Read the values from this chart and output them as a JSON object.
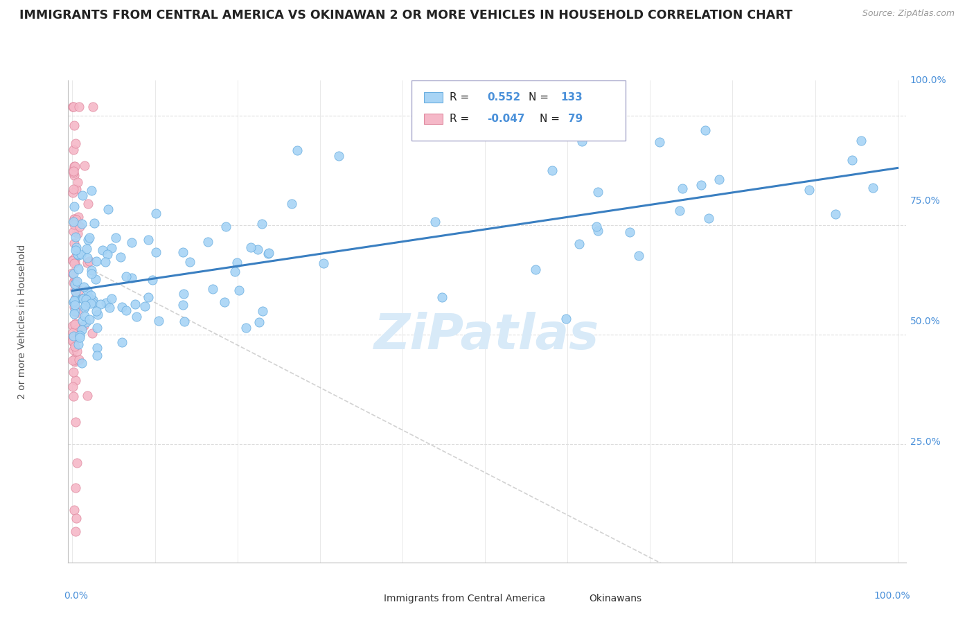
{
  "title": "IMMIGRANTS FROM CENTRAL AMERICA VS OKINAWAN 2 OR MORE VEHICLES IN HOUSEHOLD CORRELATION CHART",
  "source": "Source: ZipAtlas.com",
  "ylabel": "2 or more Vehicles in Household",
  "blue_R": 0.552,
  "blue_N": 133,
  "pink_R": -0.047,
  "pink_N": 79,
  "watermark": "ZiPatlas",
  "blue_color": "#a8d4f5",
  "blue_edge": "#6aaee0",
  "pink_color": "#f5b8c8",
  "pink_edge": "#e08aA0",
  "blue_line_color": "#3a7fc1",
  "pink_line_color": "#c8c8c8",
  "right_label_color": "#4a90d9",
  "ylabel_color": "#555555",
  "title_color": "#222222",
  "source_color": "#999999",
  "grid_color": "#e0e0e0",
  "grid_color_h": "#dddddd",
  "watermark_color": "#d8eaf8"
}
